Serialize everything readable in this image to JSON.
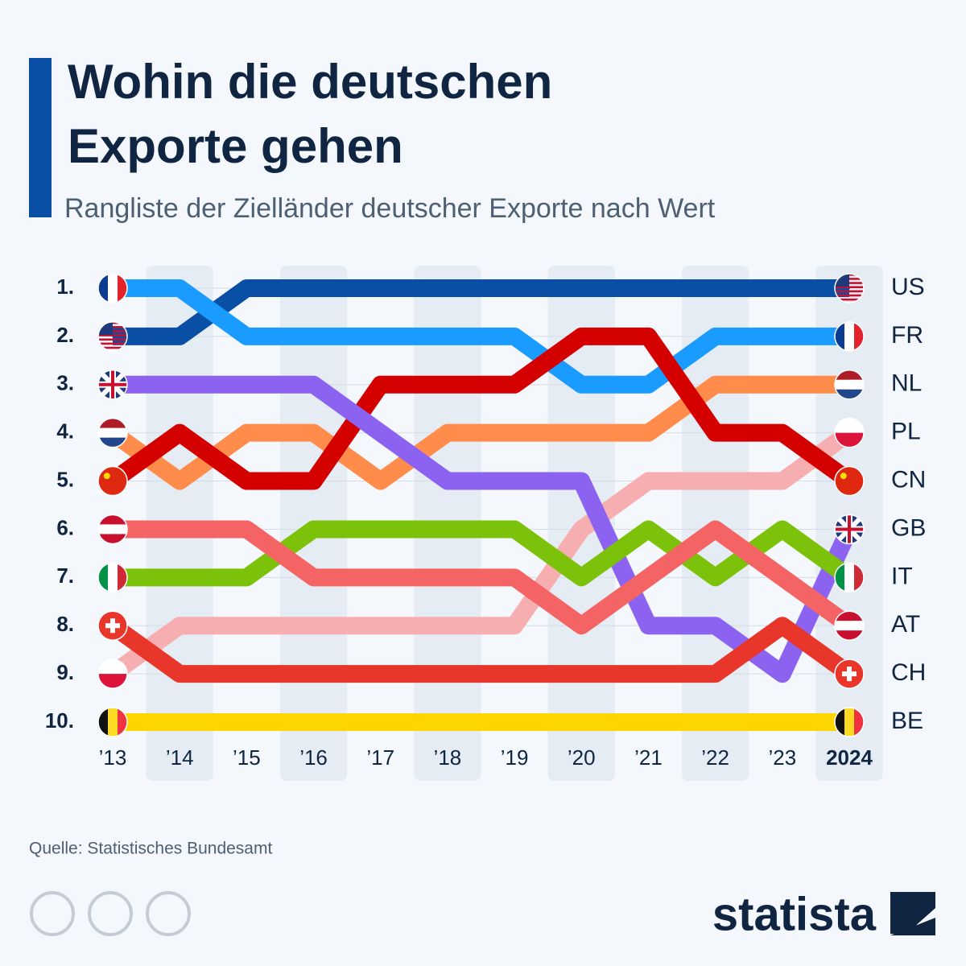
{
  "title": "Wohin die deutschen Exporte gehen",
  "title_lines": [
    "Wohin die deutschen",
    "Exporte gehen"
  ],
  "subtitle": "Rangliste der Zielländer deutscher Exporte nach Wert",
  "source": "Quelle: Statistisches Bundesamt",
  "logo": "statista",
  "chart_data": {
    "type": "bump",
    "categories": [
      "’13",
      "’14",
      "’15",
      "’16",
      "’17",
      "’18",
      "’19",
      "’20",
      "’21",
      "’22",
      "’23",
      "2024"
    ],
    "ylim": [
      1,
      10
    ],
    "reversed": true,
    "yticks": [
      {
        "value": 1,
        "label": "1."
      },
      {
        "value": 2,
        "label": "2."
      },
      {
        "value": 3,
        "label": "3."
      },
      {
        "value": 4,
        "label": "4."
      },
      {
        "value": 5,
        "label": "5."
      },
      {
        "value": 6,
        "label": "6."
      },
      {
        "value": 7,
        "label": "7."
      },
      {
        "value": 8,
        "label": "8."
      },
      {
        "value": 9,
        "label": "9."
      },
      {
        "value": 10,
        "label": "10."
      }
    ],
    "series": [
      {
        "name": "US",
        "color": "#0a4fa6",
        "values": [
          2,
          2,
          1,
          1,
          1,
          1,
          1,
          1,
          1,
          1,
          1,
          1
        ]
      },
      {
        "name": "FR",
        "color": "#1a9bff",
        "values": [
          1,
          1,
          2,
          2,
          2,
          2,
          2,
          3,
          3,
          2,
          2,
          2
        ]
      },
      {
        "name": "NL",
        "color": "#ff8c4a",
        "values": [
          4,
          5,
          4,
          4,
          5,
          4,
          4,
          4,
          4,
          3,
          3,
          3
        ]
      },
      {
        "name": "PL",
        "color": "#f7aeb0",
        "values": [
          9,
          8,
          8,
          8,
          8,
          8,
          8,
          6,
          5,
          5,
          5,
          4
        ]
      },
      {
        "name": "CN",
        "color": "#d40000",
        "values": [
          5,
          4,
          5,
          5,
          3,
          3,
          3,
          2,
          2,
          4,
          4,
          5
        ]
      },
      {
        "name": "GB",
        "color": "#8b63f0",
        "values": [
          3,
          3,
          3,
          3,
          4,
          5,
          5,
          5,
          8,
          8,
          9,
          6
        ]
      },
      {
        "name": "IT",
        "color": "#7dc20a",
        "values": [
          7,
          7,
          7,
          6,
          6,
          6,
          6,
          7,
          6,
          7,
          6,
          7
        ]
      },
      {
        "name": "AT",
        "color": "#f46464",
        "values": [
          6,
          6,
          6,
          7,
          7,
          7,
          7,
          8,
          7,
          6,
          7,
          8
        ]
      },
      {
        "name": "CH",
        "color": "#e8362a",
        "values": [
          8,
          9,
          9,
          9,
          9,
          9,
          9,
          9,
          9,
          9,
          8,
          9
        ]
      },
      {
        "name": "BE",
        "color": "#ffd500",
        "values": [
          10,
          10,
          10,
          10,
          10,
          10,
          10,
          10,
          10,
          10,
          10,
          10
        ]
      }
    ]
  }
}
